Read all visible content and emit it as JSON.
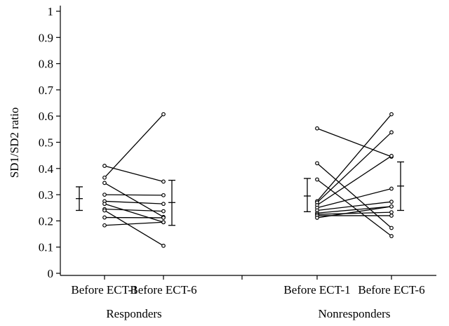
{
  "chart_data": {
    "type": "scatter",
    "ylabel": "SD1/SD2 ratio",
    "ylim": [
      0,
      1
    ],
    "yticks": [
      "0",
      "0.1",
      "0.2",
      "0.3",
      "0.4",
      "0.5",
      "0.6",
      "0.7",
      "0.8",
      "0.9",
      "1"
    ],
    "x_tick_labels": [
      "Before ECT-1",
      "Before ECT-6",
      "Before ECT-1",
      "Before ECT-6"
    ],
    "group_labels": [
      "Responders",
      "Nonresponders"
    ],
    "groups": [
      {
        "label": "Responders",
        "pairs": [
          [
            0.41,
            0.35
          ],
          [
            0.365,
            0.607
          ],
          [
            0.345,
            0.215
          ],
          [
            0.3,
            0.298
          ],
          [
            0.275,
            0.265
          ],
          [
            0.265,
            0.195
          ],
          [
            0.245,
            0.237
          ],
          [
            0.24,
            0.105
          ],
          [
            0.213,
            0.212
          ],
          [
            0.183,
            0.195
          ]
        ],
        "error_bars": [
          {
            "mean": 0.285,
            "low": 0.24,
            "high": 0.33
          },
          {
            "mean": 0.27,
            "low": 0.183,
            "high": 0.355
          }
        ]
      },
      {
        "label": "Nonresponders",
        "pairs": [
          [
            0.553,
            0.445
          ],
          [
            0.42,
            0.173
          ],
          [
            0.358,
            0.142
          ],
          [
            0.275,
            0.607
          ],
          [
            0.27,
            0.538
          ],
          [
            0.26,
            0.448
          ],
          [
            0.25,
            0.323
          ],
          [
            0.24,
            0.273
          ],
          [
            0.23,
            0.255
          ],
          [
            0.225,
            0.233
          ],
          [
            0.22,
            0.22
          ],
          [
            0.212,
            0.255
          ]
        ],
        "error_bars": [
          {
            "mean": 0.295,
            "low": 0.235,
            "high": 0.362
          },
          {
            "mean": 0.333,
            "low": 0.24,
            "high": 0.425
          }
        ]
      }
    ]
  }
}
